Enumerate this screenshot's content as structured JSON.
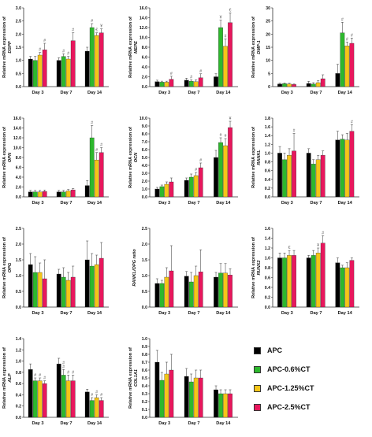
{
  "legend": {
    "items": [
      {
        "label": "APC",
        "color": "#000000"
      },
      {
        "label": "APC-0.6%CT",
        "color": "#2db82d"
      },
      {
        "label": "APC-1.25%CT",
        "color": "#f5c518"
      },
      {
        "label": "APC-2.5%CT",
        "color": "#e8175d"
      }
    ]
  },
  "chart_data": [
    {
      "type": "bar",
      "gene": "DSPP",
      "ylabel_prefix": "Relative mRNA expression of",
      "ylim": [
        0,
        3.0
      ],
      "ticks": [
        0,
        0.5,
        1.0,
        1.5,
        2.0,
        2.5,
        3.0
      ],
      "decimals": 1,
      "categories": [
        "Day 3",
        "Day 7",
        "Day 14"
      ],
      "series": [
        {
          "name": "APC",
          "values": [
            1.05,
            1.0,
            1.35
          ],
          "errors": [
            0.1,
            0.1,
            0.15
          ]
        },
        {
          "name": "APC-0.6%CT",
          "values": [
            1.0,
            1.15,
            2.25
          ],
          "errors": [
            0.15,
            0.1,
            0.15
          ]
        },
        {
          "name": "APC-1.25%CT",
          "values": [
            1.2,
            1.05,
            1.95
          ],
          "errors": [
            0.1,
            0.1,
            0.1
          ]
        },
        {
          "name": "APC-2.5%CT",
          "values": [
            1.4,
            1.75,
            2.05
          ],
          "errors": [
            0.25,
            0.3,
            0.15
          ]
        }
      ],
      "annotations": [
        "#",
        "¥",
        "#",
        "€",
        "#",
        "#",
        "#",
        "#"
      ]
    },
    {
      "type": "bar",
      "gene": "MEPE",
      "ylabel_prefix": "Relative mRNA expression of",
      "ylim": [
        0,
        16.0
      ],
      "ticks": [
        0,
        2.0,
        4.0,
        6.0,
        8.0,
        10.0,
        12.0,
        14.0,
        16.0
      ],
      "decimals": 1,
      "categories": [
        "Day 3",
        "Day 7",
        "Day 14"
      ],
      "series": [
        {
          "name": "APC",
          "values": [
            1.0,
            1.3,
            2.0
          ],
          "errors": [
            0.3,
            0.4,
            0.6
          ]
        },
        {
          "name": "APC-0.6%CT",
          "values": [
            0.9,
            1.1,
            12.0
          ],
          "errors": [
            0.2,
            0.3,
            1.5
          ]
        },
        {
          "name": "APC-1.25%CT",
          "values": [
            0.9,
            1.0,
            8.2
          ],
          "errors": [
            0.2,
            0.4,
            1.5
          ]
        },
        {
          "name": "APC-2.5%CT",
          "values": [
            1.5,
            1.8,
            13.0
          ],
          "errors": [
            0.6,
            0.8,
            2.0
          ]
        }
      ],
      "annotations": [
        "€",
        "¥",
        "#",
        "#",
        "#",
        "#"
      ]
    },
    {
      "type": "bar",
      "gene": "DMP-1",
      "ylabel_prefix": "Relative mRNA expression of",
      "ylim": [
        0,
        30
      ],
      "ticks": [
        0,
        5,
        10,
        15,
        20,
        25,
        30
      ],
      "decimals": 0,
      "categories": [
        "Day 3",
        "Day 7",
        "Day 14"
      ],
      "series": [
        {
          "name": "APC",
          "values": [
            1.0,
            1.2,
            5.0
          ],
          "errors": [
            0.3,
            0.8,
            3.5
          ]
        },
        {
          "name": "APC-0.6%CT",
          "values": [
            1.1,
            1.0,
            20.5
          ],
          "errors": [
            0.3,
            0.5,
            4.0
          ]
        },
        {
          "name": "APC-1.25%CT",
          "values": [
            1.0,
            1.5,
            15.5
          ],
          "errors": [
            0.3,
            0.8,
            1.5
          ]
        },
        {
          "name": "APC-2.5%CT",
          "values": [
            0.8,
            3.0,
            16.5
          ],
          "errors": [
            0.2,
            1.5,
            2.0
          ]
        }
      ],
      "annotations": [
        "#",
        "#",
        "#"
      ]
    },
    {
      "type": "bar",
      "gene": "OPN",
      "ylabel_prefix": "Relative mRNA expression of",
      "ylim": [
        0,
        16.0
      ],
      "ticks": [
        0,
        2.0,
        4.0,
        6.0,
        8.0,
        10.0,
        12.0,
        14.0,
        16.0
      ],
      "decimals": 1,
      "categories": [
        "Day 3",
        "Day 7",
        "Day 14"
      ],
      "series": [
        {
          "name": "APC",
          "values": [
            1.0,
            1.0,
            2.3
          ],
          "errors": [
            0.3,
            0.3,
            1.0
          ]
        },
        {
          "name": "APC-0.6%CT",
          "values": [
            1.0,
            1.0,
            12.0
          ],
          "errors": [
            0.3,
            0.3,
            2.5
          ]
        },
        {
          "name": "APC-1.25%CT",
          "values": [
            1.0,
            1.2,
            7.5
          ],
          "errors": [
            0.3,
            0.3,
            1.5
          ]
        },
        {
          "name": "APC-2.5%CT",
          "values": [
            1.1,
            1.4,
            9.0
          ],
          "errors": [
            0.3,
            0.3,
            1.0
          ]
        }
      ],
      "annotations": [
        "#",
        "#",
        "#"
      ]
    },
    {
      "type": "bar",
      "gene": "OCN",
      "ylabel_prefix": "Relative mRNA expression of",
      "ylim": [
        0,
        10.0
      ],
      "ticks": [
        0,
        1.0,
        2.0,
        3.0,
        4.0,
        5.0,
        6.0,
        7.0,
        8.0,
        9.0,
        10.0
      ],
      "decimals": 1,
      "categories": [
        "Day 3",
        "Day 7",
        "Day 14"
      ],
      "series": [
        {
          "name": "APC",
          "values": [
            1.0,
            2.1,
            5.0
          ],
          "errors": [
            0.2,
            0.3,
            0.9
          ]
        },
        {
          "name": "APC-0.6%CT",
          "values": [
            1.3,
            2.5,
            6.9
          ],
          "errors": [
            0.2,
            0.4,
            0.6
          ]
        },
        {
          "name": "APC-1.25%CT",
          "values": [
            1.6,
            2.7,
            6.5
          ],
          "errors": [
            0.3,
            0.4,
            0.9
          ]
        },
        {
          "name": "APC-2.5%CT",
          "values": [
            1.9,
            3.7,
            8.8
          ],
          "errors": [
            0.5,
            0.6,
            0.8
          ]
        }
      ],
      "annotations": [
        "¥",
        "#",
        "#",
        "#",
        "#"
      ]
    },
    {
      "type": "bar",
      "gene": "RANKL",
      "ylabel_prefix": "Relative mRNA expression of",
      "ylim": [
        0,
        1.8
      ],
      "ticks": [
        0,
        0.2,
        0.4,
        0.6,
        0.8,
        1.0,
        1.2,
        1.4,
        1.6,
        1.8
      ],
      "decimals": 1,
      "categories": [
        "Day 3",
        "Day 7",
        "Day 14"
      ],
      "series": [
        {
          "name": "APC",
          "values": [
            1.0,
            1.0,
            1.3
          ],
          "errors": [
            0.15,
            0.1,
            0.2
          ]
        },
        {
          "name": "APC-0.6%CT",
          "values": [
            0.85,
            0.75,
            1.32
          ],
          "errors": [
            0.15,
            0.1,
            0.1
          ]
        },
        {
          "name": "APC-1.25%CT",
          "values": [
            0.95,
            0.85,
            1.3
          ],
          "errors": [
            0.15,
            0.1,
            0.15
          ]
        },
        {
          "name": "APC-2.5%CT",
          "values": [
            1.05,
            0.95,
            1.5
          ],
          "errors": [
            0.4,
            0.1,
            0.15
          ]
        }
      ],
      "annotations": [
        "#",
        "#"
      ]
    },
    {
      "type": "bar",
      "gene": "OPG",
      "ylabel_prefix": "Relative mRNA expression of",
      "ylim": [
        0,
        2.5
      ],
      "ticks": [
        0,
        0.5,
        1.0,
        1.5,
        2.0,
        2.5
      ],
      "decimals": 1,
      "categories": [
        "Day 3",
        "Day 7",
        "Day 14"
      ],
      "series": [
        {
          "name": "APC",
          "values": [
            1.35,
            1.05,
            1.5
          ],
          "errors": [
            0.35,
            0.15,
            0.6
          ]
        },
        {
          "name": "APC-0.6%CT",
          "values": [
            1.1,
            0.95,
            1.3
          ],
          "errors": [
            0.5,
            0.3,
            0.4
          ]
        },
        {
          "name": "APC-1.25%CT",
          "values": [
            1.1,
            0.85,
            1.35
          ],
          "errors": [
            0.3,
            0.25,
            0.3
          ]
        },
        {
          "name": "APC-2.5%CT",
          "values": [
            0.9,
            0.95,
            1.55
          ],
          "errors": [
            0.6,
            0.35,
            0.5
          ]
        }
      ],
      "annotations": []
    },
    {
      "type": "bar",
      "gene": "RANKL/OPG ratio",
      "ylabel_prefix": "",
      "ylim": [
        0,
        2.5
      ],
      "ticks": [
        0,
        0.5,
        1.0,
        1.5,
        2.0,
        2.5
      ],
      "decimals": 1,
      "categories": [
        "Day 3",
        "Day 7",
        "Day 14"
      ],
      "series": [
        {
          "name": "APC",
          "values": [
            0.75,
            0.98,
            0.95
          ],
          "errors": [
            0.15,
            0.15,
            0.15
          ]
        },
        {
          "name": "APC-0.6%CT",
          "values": [
            0.75,
            0.8,
            1.08
          ],
          "errors": [
            0.1,
            0.3,
            0.3
          ]
        },
        {
          "name": "APC-1.25%CT",
          "values": [
            0.95,
            1.0,
            1.08
          ],
          "errors": [
            0.3,
            0.3,
            0.3
          ]
        },
        {
          "name": "APC-2.5%CT",
          "values": [
            1.15,
            1.12,
            1.02
          ],
          "errors": [
            0.8,
            0.7,
            0.2
          ]
        }
      ],
      "annotations": []
    },
    {
      "type": "bar",
      "gene": "RUNX2",
      "ylabel_prefix": "Relative mRNA expression of",
      "ylim": [
        0,
        1.6
      ],
      "ticks": [
        0,
        0.2,
        0.4,
        0.6,
        0.8,
        1.0,
        1.2,
        1.4,
        1.6
      ],
      "decimals": 1,
      "categories": [
        "Day 3",
        "Day 7",
        "Day 14"
      ],
      "series": [
        {
          "name": "APC",
          "values": [
            1.0,
            1.0,
            0.9
          ],
          "errors": [
            0.1,
            0.05,
            0.1
          ]
        },
        {
          "name": "APC-0.6%CT",
          "values": [
            1.0,
            1.05,
            0.8
          ],
          "errors": [
            0.1,
            0.1,
            0.05
          ]
        },
        {
          "name": "APC-1.25%CT",
          "values": [
            1.05,
            1.1,
            0.8
          ],
          "errors": [
            0.1,
            0.1,
            0.1
          ]
        },
        {
          "name": "APC-2.5%CT",
          "values": [
            1.05,
            1.3,
            0.95
          ],
          "errors": [
            0.1,
            0.15,
            0.05
          ]
        }
      ],
      "annotations": [
        "#",
        "¥",
        "€"
      ]
    },
    {
      "type": "bar",
      "gene": "ALP",
      "ylabel_prefix": "Relative mRNA expression of",
      "ylim": [
        0,
        1.4
      ],
      "ticks": [
        0,
        0.2,
        0.4,
        0.6,
        0.8,
        1.0,
        1.2,
        1.4
      ],
      "decimals": 1,
      "categories": [
        "Day 3",
        "Day 7",
        "Day 14"
      ],
      "series": [
        {
          "name": "APC",
          "values": [
            0.85,
            0.95,
            0.45
          ],
          "errors": [
            0.1,
            0.1,
            0.05
          ]
        },
        {
          "name": "APC-0.6%CT",
          "values": [
            0.65,
            0.75,
            0.3
          ],
          "errors": [
            0.05,
            0.1,
            0.05
          ]
        },
        {
          "name": "APC-1.25%CT",
          "values": [
            0.65,
            0.65,
            0.35
          ],
          "errors": [
            0.05,
            0.1,
            0.05
          ]
        },
        {
          "name": "APC-2.5%CT",
          "values": [
            0.6,
            0.65,
            0.3
          ],
          "errors": [
            0.05,
            0.1,
            0.05
          ]
        }
      ],
      "annotations": [
        "#",
        "#",
        "#",
        "#",
        "#",
        "#",
        "#",
        "#",
        "#",
        "#"
      ]
    },
    {
      "type": "bar",
      "gene": "COL1A1",
      "ylabel_prefix": "Relative mRNA expression of",
      "ylim": [
        0,
        1.0
      ],
      "ticks": [
        0,
        0.1,
        0.2,
        0.3,
        0.4,
        0.5,
        0.6,
        0.7,
        0.8,
        0.9,
        1.0
      ],
      "decimals": 1,
      "categories": [
        "Day 3",
        "Day 7",
        "Day 14"
      ],
      "series": [
        {
          "name": "APC",
          "values": [
            0.7,
            0.52,
            0.35
          ],
          "errors": [
            0.15,
            0.1,
            0.05
          ]
        },
        {
          "name": "APC-0.6%CT",
          "values": [
            0.47,
            0.45,
            0.3
          ],
          "errors": [
            0.1,
            0.1,
            0.05
          ]
        },
        {
          "name": "APC-1.25%CT",
          "values": [
            0.55,
            0.5,
            0.3
          ],
          "errors": [
            0.15,
            0.1,
            0.05
          ]
        },
        {
          "name": "APC-2.5%CT",
          "values": [
            0.6,
            0.5,
            0.3
          ],
          "errors": [
            0.2,
            0.1,
            0.05
          ]
        }
      ],
      "annotations": []
    }
  ]
}
